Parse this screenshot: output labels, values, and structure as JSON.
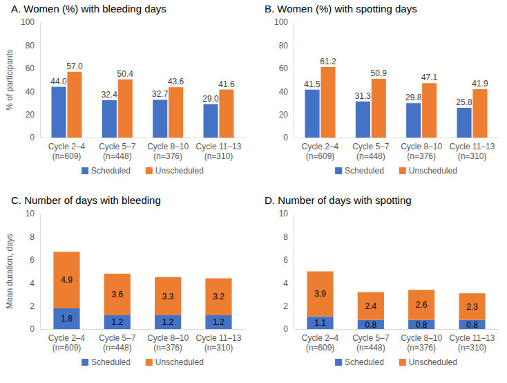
{
  "chart_data": [
    {
      "type": "bar",
      "title": "A. Women (%) with bleeding days",
      "y_label": "% of participants",
      "categories": [
        "Cycle 2–4 (n=609)",
        "Cycle 5–7 (n=448)",
        "Cycle 8–10 (n=376)",
        "Cycle 11–13 (n=310)"
      ],
      "series": [
        {
          "name": "Scheduled",
          "color": "#4472c4",
          "values": [
            44.0,
            32.4,
            32.7,
            29.0
          ],
          "value_labels": [
            "44.0",
            "32.4",
            "32.7",
            "29.0"
          ]
        },
        {
          "name": "Unscheduled",
          "color": "#ed7d31",
          "values": [
            57.0,
            50.4,
            43.6,
            41.6
          ],
          "value_labels": [
            "57.0",
            "50.4",
            "43.6",
            "41.6"
          ]
        }
      ],
      "ylim": [
        0,
        100
      ],
      "yticks": [
        0,
        20,
        40,
        60,
        80,
        100
      ],
      "data_labels": true,
      "legend": "bottom"
    },
    {
      "type": "bar",
      "title": "B. Women (%) with spotting days",
      "categories": [
        "Cycle 2–4 (n=609)",
        "Cycle 5–7 (n=448)",
        "Cycle 8–10 (n=376)",
        "Cycle 11–13 (n=310)"
      ],
      "series": [
        {
          "name": "Scheduled",
          "color": "#4472c4",
          "values": [
            41.5,
            31.3,
            29.8,
            25.8
          ]
        },
        {
          "name": "Unscheduled",
          "color": "#ed7d31",
          "values": [
            61.2,
            50.9,
            47.1,
            41.9
          ]
        }
      ],
      "ylim": [
        0,
        100
      ],
      "yticks": [
        0,
        20,
        40,
        60,
        80,
        100
      ],
      "data_labels": true,
      "legend": "bottom"
    },
    {
      "type": "bar",
      "title": "C. Number of days with bleeding",
      "y_label": "Mean duration, days",
      "categories": [
        "Cycle 2–4 (n=609)",
        "Cycle 5–7 (n=448)",
        "Cycle 8–10 (n=376)",
        "Cycle 11–13 (n=310)"
      ],
      "series": [
        {
          "name": "Scheduled",
          "color": "#4472c4",
          "values": [
            1.8,
            1.2,
            1.2,
            1.2
          ]
        },
        {
          "name": "Unscheduled",
          "color": "#ed7d31",
          "values": [
            4.9,
            3.6,
            3.3,
            3.2
          ]
        }
      ],
      "ylim": [
        0,
        10
      ],
      "yticks": [
        0,
        2,
        4,
        6,
        8,
        10
      ],
      "stacked": true,
      "data_labels": true,
      "legend": "bottom"
    },
    {
      "type": "bar",
      "title": "D. Number of days with spotting",
      "categories": [
        "Cycle 2–4 (n=609)",
        "Cycle 5–7 (n=448)",
        "Cycle 8–10 (n=376)",
        "Cycle 11–13 (n=310)"
      ],
      "series": [
        {
          "name": "Scheduled",
          "color": "#4472c4",
          "values": [
            1.1,
            0.8,
            0.8,
            0.8
          ]
        },
        {
          "name": "Unscheduled",
          "color": "#ed7d31",
          "values": [
            3.9,
            2.4,
            2.6,
            2.3
          ]
        }
      ],
      "ylim": [
        0,
        10
      ],
      "yticks": [
        0,
        2,
        4,
        6,
        8,
        10
      ],
      "stacked": true,
      "data_labels": true,
      "legend": "bottom"
    }
  ]
}
